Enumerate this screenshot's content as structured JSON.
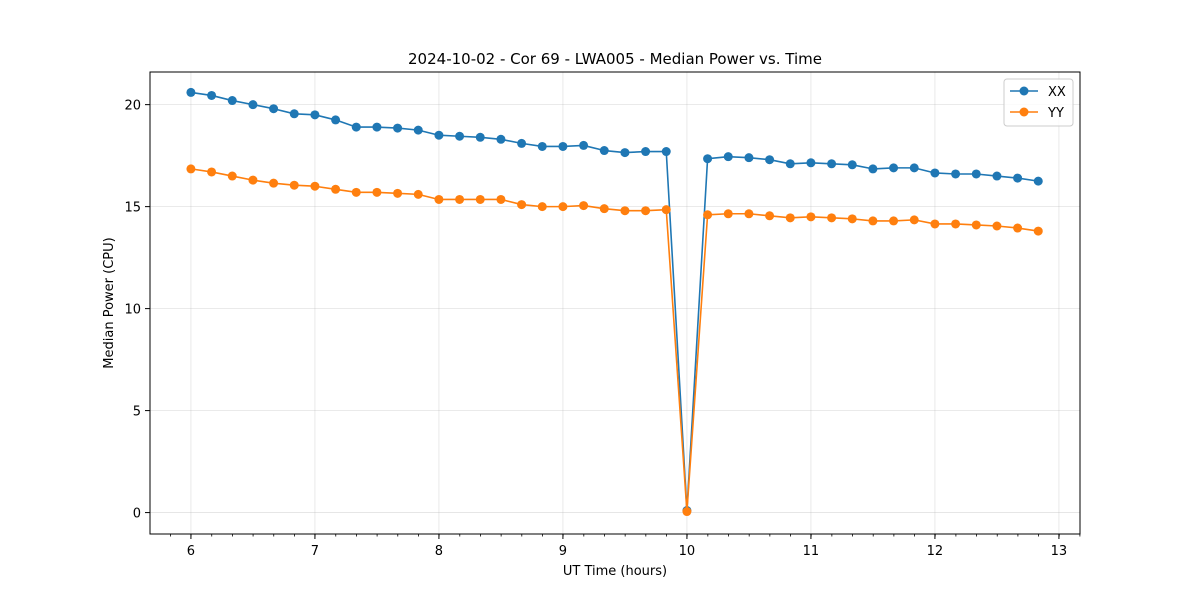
{
  "chart_data": {
    "type": "line",
    "title": "2024-10-02 - Cor 69 - LWA005 - Median Power vs. Time",
    "xlabel": "UT Time (hours)",
    "ylabel": "Median Power (CPU)",
    "xlim": [
      5.67,
      13.17
    ],
    "ylim": [
      -1.05,
      21.6
    ],
    "xticks": [
      6,
      7,
      8,
      9,
      10,
      11,
      12,
      13
    ],
    "xtick_labels": [
      "6",
      "7",
      "8",
      "9",
      "10",
      "11",
      "12",
      "13"
    ],
    "xminor_step": 0.1667,
    "yticks": [
      0,
      5,
      10,
      15,
      20
    ],
    "ytick_labels": [
      "0",
      "5",
      "10",
      "15",
      "20"
    ],
    "grid": true,
    "legend_position": "top-right",
    "x": [
      6.0,
      6.1667,
      6.3333,
      6.5,
      6.6667,
      6.8333,
      7.0,
      7.1667,
      7.3333,
      7.5,
      7.6667,
      7.8333,
      8.0,
      8.1667,
      8.3333,
      8.5,
      8.6667,
      8.8333,
      9.0,
      9.1667,
      9.3333,
      9.5,
      9.6667,
      9.8333,
      10.0,
      10.1667,
      10.3333,
      10.5,
      10.6667,
      10.8333,
      11.0,
      11.1667,
      11.3333,
      11.5,
      11.6667,
      11.8333,
      12.0,
      12.1667,
      12.3333,
      12.5,
      12.6667,
      12.8333
    ],
    "series": [
      {
        "name": "XX",
        "color": "#1f77b4",
        "values": [
          20.6,
          20.45,
          20.2,
          20.0,
          19.8,
          19.55,
          19.5,
          19.25,
          18.9,
          18.9,
          18.85,
          18.75,
          18.5,
          18.45,
          18.4,
          18.3,
          18.1,
          17.95,
          17.95,
          18.0,
          17.75,
          17.65,
          17.7,
          17.7,
          0.1,
          17.35,
          17.45,
          17.4,
          17.3,
          17.1,
          17.15,
          17.1,
          17.05,
          16.85,
          16.9,
          16.9,
          16.65,
          16.6,
          16.6,
          16.5,
          16.4,
          16.25
        ]
      },
      {
        "name": "YY",
        "color": "#ff7f0e",
        "values": [
          16.85,
          16.7,
          16.5,
          16.3,
          16.15,
          16.05,
          16.0,
          15.85,
          15.7,
          15.7,
          15.65,
          15.6,
          15.35,
          15.35,
          15.35,
          15.35,
          15.1,
          15.0,
          15.0,
          15.05,
          14.9,
          14.8,
          14.8,
          14.85,
          0.05,
          14.6,
          14.65,
          14.65,
          14.55,
          14.45,
          14.5,
          14.45,
          14.4,
          14.3,
          14.3,
          14.35,
          14.15,
          14.15,
          14.1,
          14.05,
          13.95,
          13.8
        ]
      }
    ]
  }
}
